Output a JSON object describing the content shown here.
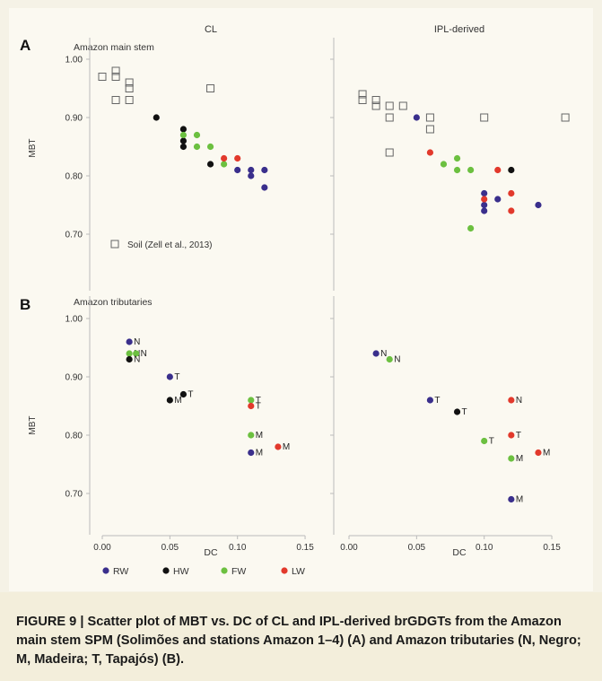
{
  "figure": {
    "caption": "FIGURE 9 | Scatter plot of MBT vs. DC of CL and IPL-derived brGDGTs from the Amazon main stem SPM (Solimões and stations Amazon 1–4) (A) and Amazon tributaries (N, Negro; M, Madeira; T, Tapajós) (B).",
    "column_titles": [
      "CL",
      "IPL-derived"
    ],
    "panel_letters": [
      "A",
      "B"
    ],
    "panel_subtitles": [
      "Amazon main stem",
      "Amazon tributaries"
    ],
    "soil_legend_label": "Soil (Zell et al., 2013)",
    "colors": {
      "RW": "#3a2f8c",
      "HW": "#111111",
      "FW": "#6cc040",
      "LW": "#e2392c",
      "soil": "#666666"
    }
  },
  "chart_data": [
    {
      "panel": "A",
      "column": "CL",
      "type": "scatter",
      "xlabel": "",
      "ylabel": "MBT",
      "xlim": [
        0,
        0.15
      ],
      "ylim": [
        0.65,
        1.0
      ],
      "yticks": [
        "1.00",
        "0.90",
        "0.80",
        "0.70"
      ],
      "series": [
        {
          "name": "Soil (Zell et al., 2013)",
          "marker": "open-square",
          "color": "soil",
          "points": [
            [
              0.0,
              0.97
            ],
            [
              0.01,
              0.98
            ],
            [
              0.01,
              0.97
            ],
            [
              0.02,
              0.96
            ],
            [
              0.02,
              0.95
            ],
            [
              0.01,
              0.93
            ],
            [
              0.02,
              0.93
            ],
            [
              0.08,
              0.95
            ]
          ]
        },
        {
          "name": "RW",
          "color": "RW",
          "points": [
            [
              0.1,
              0.81
            ],
            [
              0.11,
              0.81
            ],
            [
              0.12,
              0.81
            ],
            [
              0.11,
              0.8
            ],
            [
              0.12,
              0.78
            ]
          ]
        },
        {
          "name": "HW",
          "color": "HW",
          "points": [
            [
              0.04,
              0.9
            ],
            [
              0.06,
              0.88
            ],
            [
              0.06,
              0.86
            ],
            [
              0.06,
              0.85
            ],
            [
              0.08,
              0.82
            ]
          ]
        },
        {
          "name": "FW",
          "color": "FW",
          "points": [
            [
              0.06,
              0.87
            ],
            [
              0.07,
              0.87
            ],
            [
              0.07,
              0.85
            ],
            [
              0.08,
              0.85
            ],
            [
              0.09,
              0.82
            ]
          ]
        },
        {
          "name": "LW",
          "color": "LW",
          "points": [
            [
              0.09,
              0.83
            ],
            [
              0.1,
              0.83
            ]
          ]
        }
      ]
    },
    {
      "panel": "A",
      "column": "IPL-derived",
      "type": "scatter",
      "xlabel": "",
      "ylabel": "",
      "xlim": [
        0,
        0.16
      ],
      "ylim": [
        0.65,
        1.0
      ],
      "series": [
        {
          "name": "Soil (Zell et al., 2013)",
          "marker": "open-square",
          "color": "soil",
          "points": [
            [
              0.01,
              0.94
            ],
            [
              0.01,
              0.93
            ],
            [
              0.02,
              0.93
            ],
            [
              0.02,
              0.92
            ],
            [
              0.03,
              0.92
            ],
            [
              0.04,
              0.92
            ],
            [
              0.03,
              0.9
            ],
            [
              0.06,
              0.9
            ],
            [
              0.06,
              0.88
            ],
            [
              0.1,
              0.9
            ],
            [
              0.16,
              0.9
            ],
            [
              0.03,
              0.84
            ]
          ]
        },
        {
          "name": "RW",
          "color": "RW",
          "points": [
            [
              0.05,
              0.9
            ],
            [
              0.1,
              0.77
            ],
            [
              0.1,
              0.75
            ],
            [
              0.1,
              0.74
            ],
            [
              0.11,
              0.76
            ],
            [
              0.14,
              0.75
            ]
          ]
        },
        {
          "name": "HW",
          "color": "HW",
          "points": [
            [
              0.12,
              0.81
            ]
          ]
        },
        {
          "name": "FW",
          "color": "FW",
          "points": [
            [
              0.07,
              0.82
            ],
            [
              0.08,
              0.83
            ],
            [
              0.08,
              0.81
            ],
            [
              0.09,
              0.81
            ],
            [
              0.09,
              0.71
            ]
          ]
        },
        {
          "name": "LW",
          "color": "LW",
          "points": [
            [
              0.06,
              0.84
            ],
            [
              0.11,
              0.81
            ],
            [
              0.12,
              0.77
            ],
            [
              0.1,
              0.76
            ],
            [
              0.12,
              0.74
            ]
          ]
        }
      ]
    },
    {
      "panel": "B",
      "column": "CL",
      "type": "scatter",
      "xlabel": "DC",
      "ylabel": "MBT",
      "xlim": [
        0,
        0.15
      ],
      "ylim": [
        0.65,
        1.0
      ],
      "xticks": [
        "0.00",
        "0.05",
        "0.10",
        "0.15"
      ],
      "yticks": [
        "1.00",
        "0.90",
        "0.80",
        "0.70"
      ],
      "points": [
        {
          "x": 0.02,
          "y": 0.96,
          "color": "RW",
          "label": "N"
        },
        {
          "x": 0.02,
          "y": 0.94,
          "color": "FW",
          "label": "N"
        },
        {
          "x": 0.025,
          "y": 0.94,
          "color": "FW",
          "label": "N"
        },
        {
          "x": 0.02,
          "y": 0.93,
          "color": "HW",
          "label": "N"
        },
        {
          "x": 0.05,
          "y": 0.9,
          "color": "RW",
          "label": "T"
        },
        {
          "x": 0.06,
          "y": 0.87,
          "color": "HW",
          "label": "T"
        },
        {
          "x": 0.05,
          "y": 0.86,
          "color": "HW",
          "label": "M"
        },
        {
          "x": 0.11,
          "y": 0.86,
          "color": "FW",
          "label": "T"
        },
        {
          "x": 0.11,
          "y": 0.85,
          "color": "LW",
          "label": "T"
        },
        {
          "x": 0.11,
          "y": 0.8,
          "color": "FW",
          "label": "M"
        },
        {
          "x": 0.11,
          "y": 0.77,
          "color": "RW",
          "label": "M"
        },
        {
          "x": 0.13,
          "y": 0.78,
          "color": "LW",
          "label": "M"
        }
      ]
    },
    {
      "panel": "B",
      "column": "IPL-derived",
      "type": "scatter",
      "xlabel": "DC",
      "ylabel": "",
      "xlim": [
        0,
        0.16
      ],
      "ylim": [
        0.65,
        1.0
      ],
      "xticks": [
        "0.00",
        "0.05",
        "0.10",
        "0.15"
      ],
      "points": [
        {
          "x": 0.02,
          "y": 0.94,
          "color": "RW",
          "label": "N"
        },
        {
          "x": 0.03,
          "y": 0.93,
          "color": "FW",
          "label": "N"
        },
        {
          "x": 0.06,
          "y": 0.86,
          "color": "RW",
          "label": "T"
        },
        {
          "x": 0.08,
          "y": 0.84,
          "color": "HW",
          "label": "T"
        },
        {
          "x": 0.1,
          "y": 0.79,
          "color": "FW",
          "label": "T"
        },
        {
          "x": 0.12,
          "y": 0.86,
          "color": "LW",
          "label": "N"
        },
        {
          "x": 0.12,
          "y": 0.8,
          "color": "LW",
          "label": "T"
        },
        {
          "x": 0.12,
          "y": 0.76,
          "color": "FW",
          "label": "M"
        },
        {
          "x": 0.14,
          "y": 0.77,
          "color": "LW",
          "label": "M"
        },
        {
          "x": 0.12,
          "y": 0.69,
          "color": "RW",
          "label": "M"
        }
      ]
    }
  ],
  "legend": [
    {
      "key": "RW",
      "label": "RW"
    },
    {
      "key": "HW",
      "label": "HW"
    },
    {
      "key": "FW",
      "label": "FW"
    },
    {
      "key": "LW",
      "label": "LW"
    }
  ]
}
